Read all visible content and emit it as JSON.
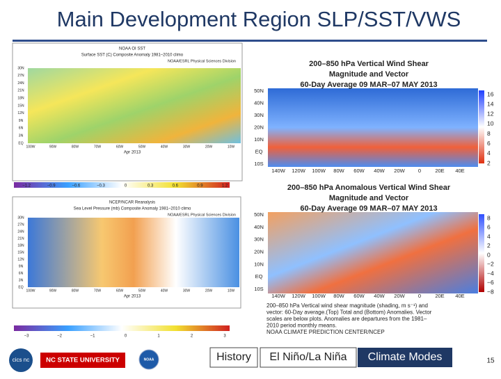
{
  "title": "Main Development Region SLP/SST/VWS",
  "sst": {
    "header": [
      "NOAA OI SST",
      "Surface SST (C) Composite Anomaly 1981–2010 climo",
      "NOAA/ESRL Physical Sciences Division"
    ],
    "footer": "Apr 2013",
    "lats": [
      "30N",
      "27N",
      "24N",
      "21N",
      "18N",
      "15N",
      "12N",
      "9N",
      "6N",
      "3N",
      "EQ"
    ],
    "lons": [
      "100W",
      "90W",
      "80W",
      "70W",
      "60W",
      "50W",
      "40W",
      "30W",
      "20W",
      "10W"
    ],
    "colorbar": [
      "−1.2",
      "−0.9",
      "−0.6",
      "−0.3",
      "0",
      "0.3",
      "0.6",
      "0.9",
      "1.2"
    ]
  },
  "slp": {
    "header": [
      "NCEP/NCAR Reanalysis",
      "Sea Level Pressure (mb) Composite Anomaly 1981–2010 climo",
      "NOAA/ESRL Physical Sciences Division"
    ],
    "footer": "Apr 2013",
    "lats": [
      "30N",
      "27N",
      "24N",
      "21N",
      "18N",
      "15N",
      "12N",
      "9N",
      "6N",
      "3N",
      "EQ"
    ],
    "lons": [
      "100W",
      "90W",
      "80W",
      "70W",
      "60W",
      "50W",
      "40W",
      "30W",
      "20W",
      "10W"
    ],
    "colorbar": [
      "−3",
      "−2",
      "−1",
      "0",
      "1",
      "2",
      "3"
    ]
  },
  "vws": {
    "header": [
      "200–850 hPa Vertical Wind Shear",
      "Magnitude and Vector",
      "60-Day Average 09 MAR–07 MAY 2013"
    ],
    "lats": [
      "50N",
      "40N",
      "30N",
      "20N",
      "10N",
      "EQ",
      "10S"
    ],
    "lons": [
      "140W",
      "120W",
      "100W",
      "80W",
      "60W",
      "40W",
      "20W",
      "0",
      "20E",
      "40E"
    ],
    "colorbar": [
      "16",
      "14",
      "12",
      "10",
      "8",
      "6",
      "4",
      "2"
    ]
  },
  "avws": {
    "header": [
      "200–850 hPa Anomalous Vertical Wind Shear",
      "Magnitude and Vector",
      "60-Day Average 09 MAR–07 MAY 2013"
    ],
    "lats": [
      "50N",
      "40N",
      "30N",
      "20N",
      "10N",
      "EQ",
      "10S"
    ],
    "lons": [
      "140W",
      "120W",
      "100W",
      "80W",
      "60W",
      "40W",
      "20W",
      "0",
      "20E",
      "40E"
    ],
    "colorbar": [
      "8",
      "6",
      "4",
      "2",
      "0",
      "−2",
      "−4",
      "−6",
      "−8"
    ]
  },
  "caption": [
    "200–850 hPa Vertical wind shear magnitude (shading, m s⁻¹) and",
    "vector: 60-Day average.(Top) Total and (Bottom) Anomalies. Vector",
    "scales are below plots. Anomalies are departures from the 1981–",
    "2010 period monthly means.",
    "NOAA CLIMATE PREDICTION CENTER/NCEP"
  ],
  "logos": {
    "cics": "cics nc",
    "ncsu": "NC STATE UNIVERSITY",
    "noaa": "NOAA"
  },
  "nav": [
    "History",
    "El Niño/La Niña",
    "Climate Modes"
  ],
  "page": "15"
}
